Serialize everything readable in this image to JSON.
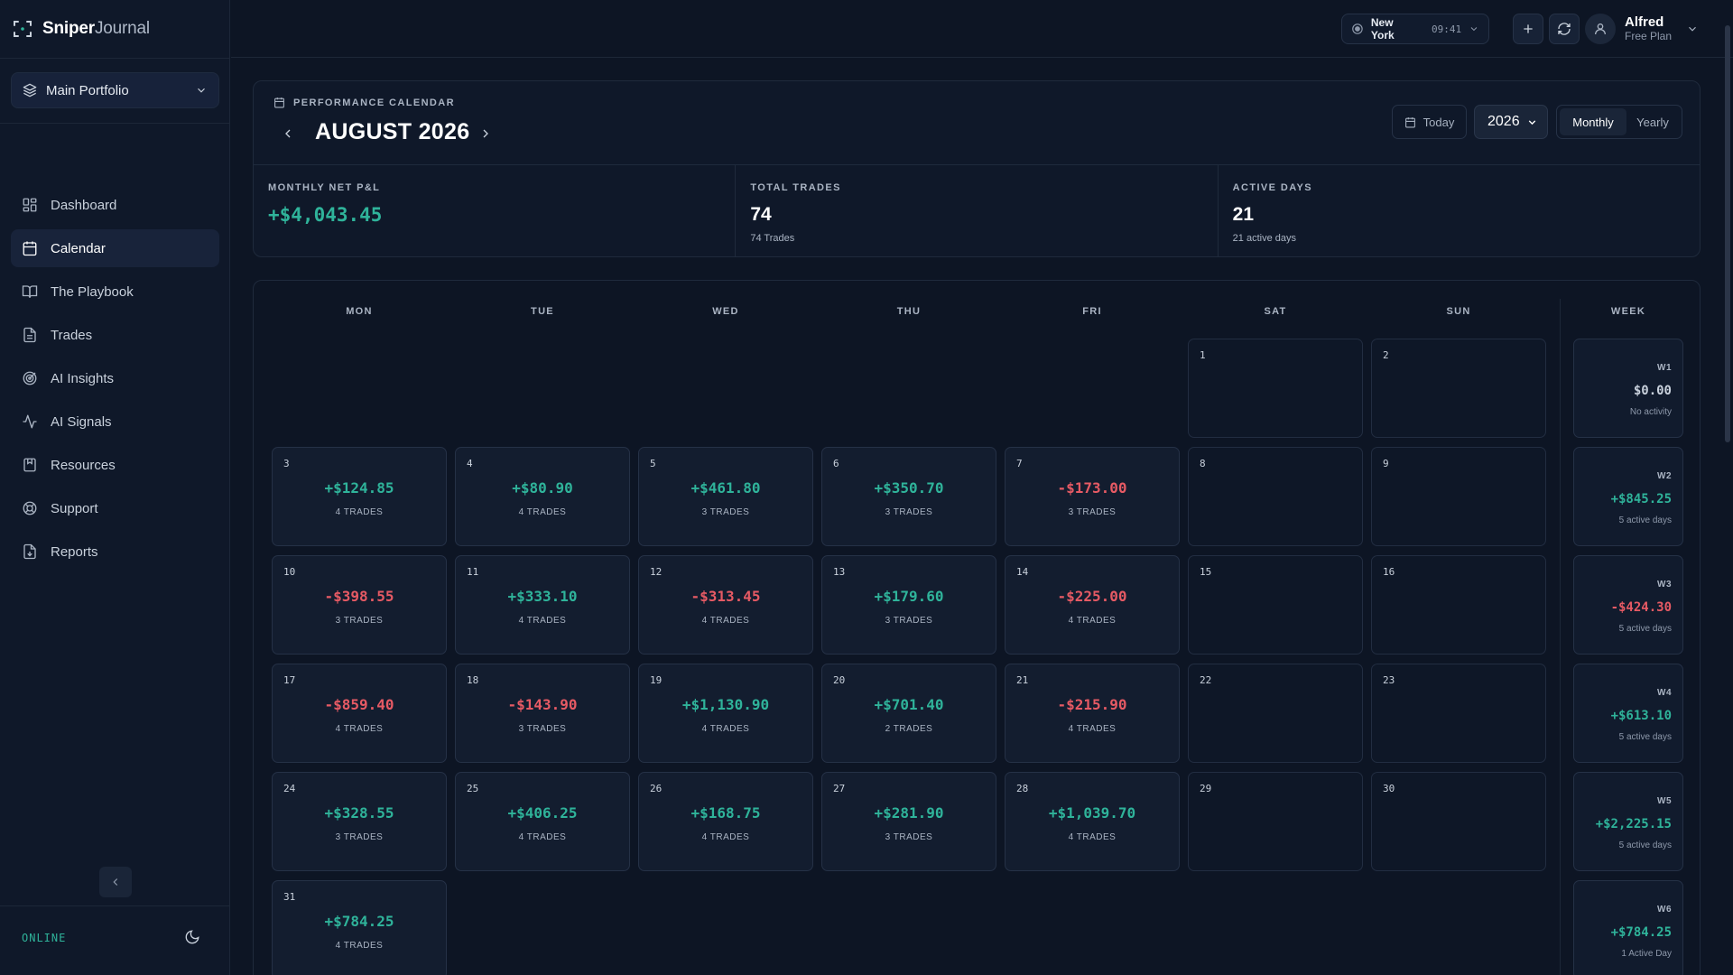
{
  "app": {
    "brand_bold": "Sniper",
    "brand_light": "Journal"
  },
  "sidebar": {
    "portfolio": "Main Portfolio",
    "items": [
      {
        "label": "Dashboard",
        "icon": "dashboard-icon"
      },
      {
        "label": "Calendar",
        "icon": "calendar-icon",
        "active": true
      },
      {
        "label": "The Playbook",
        "icon": "book-icon"
      },
      {
        "label": "Trades",
        "icon": "file-icon"
      },
      {
        "label": "AI Insights",
        "icon": "target-icon"
      },
      {
        "label": "AI Signals",
        "icon": "activity-icon"
      },
      {
        "label": "Resources",
        "icon": "bookmark-icon"
      },
      {
        "label": "Support",
        "icon": "lifebuoy-icon"
      },
      {
        "label": "Reports",
        "icon": "file-download-icon"
      }
    ],
    "status": "ONLINE"
  },
  "topbar": {
    "location": "New York",
    "time": "09:41",
    "user_name": "Alfred",
    "user_plan": "Free Plan"
  },
  "summary": {
    "section_label": "PERFORMANCE CALENDAR",
    "month_title": "AUGUST 2026",
    "today_label": "Today",
    "year": "2026",
    "view_monthly": "Monthly",
    "view_yearly": "Yearly",
    "stats": [
      {
        "label": "MONTHLY NET P&L",
        "value": "+$4,043.45",
        "sub": ""
      },
      {
        "label": "TOTAL TRADES",
        "value": "74",
        "sub": "74 Trades"
      },
      {
        "label": "ACTIVE DAYS",
        "value": "21",
        "sub": "21 active days"
      }
    ]
  },
  "calendar": {
    "weekdays": [
      "MON",
      "TUE",
      "WED",
      "THU",
      "FRI",
      "SAT",
      "SUN"
    ],
    "week_header": "WEEK",
    "weeks": [
      {
        "label": "W1",
        "total": "$0.00",
        "sub": "No activity",
        "days": [
          null,
          null,
          null,
          null,
          null,
          {
            "day": "1"
          },
          {
            "day": "2"
          }
        ]
      },
      {
        "label": "W2",
        "total": "+$845.25",
        "sub": "5 active days",
        "days": [
          {
            "day": "3",
            "pnl": "+$124.85",
            "trades": "4 TRADES"
          },
          {
            "day": "4",
            "pnl": "+$80.90",
            "trades": "4 TRADES"
          },
          {
            "day": "5",
            "pnl": "+$461.80",
            "trades": "3 TRADES"
          },
          {
            "day": "6",
            "pnl": "+$350.70",
            "trades": "3 TRADES"
          },
          {
            "day": "7",
            "pnl": "-$173.00",
            "trades": "3 TRADES"
          },
          {
            "day": "8"
          },
          {
            "day": "9"
          }
        ]
      },
      {
        "label": "W3",
        "total": "-$424.30",
        "sub": "5 active days",
        "days": [
          {
            "day": "10",
            "pnl": "-$398.55",
            "trades": "3 TRADES"
          },
          {
            "day": "11",
            "pnl": "+$333.10",
            "trades": "4 TRADES"
          },
          {
            "day": "12",
            "pnl": "-$313.45",
            "trades": "4 TRADES"
          },
          {
            "day": "13",
            "pnl": "+$179.60",
            "trades": "3 TRADES"
          },
          {
            "day": "14",
            "pnl": "-$225.00",
            "trades": "4 TRADES"
          },
          {
            "day": "15"
          },
          {
            "day": "16"
          }
        ]
      },
      {
        "label": "W4",
        "total": "+$613.10",
        "sub": "5 active days",
        "days": [
          {
            "day": "17",
            "pnl": "-$859.40",
            "trades": "4 TRADES"
          },
          {
            "day": "18",
            "pnl": "-$143.90",
            "trades": "3 TRADES"
          },
          {
            "day": "19",
            "pnl": "+$1,130.90",
            "trades": "4 TRADES"
          },
          {
            "day": "20",
            "pnl": "+$701.40",
            "trades": "2 TRADES"
          },
          {
            "day": "21",
            "pnl": "-$215.90",
            "trades": "4 TRADES"
          },
          {
            "day": "22"
          },
          {
            "day": "23"
          }
        ]
      },
      {
        "label": "W5",
        "total": "+$2,225.15",
        "sub": "5 active days",
        "days": [
          {
            "day": "24",
            "pnl": "+$328.55",
            "trades": "3 TRADES"
          },
          {
            "day": "25",
            "pnl": "+$406.25",
            "trades": "4 TRADES"
          },
          {
            "day": "26",
            "pnl": "+$168.75",
            "trades": "4 TRADES"
          },
          {
            "day": "27",
            "pnl": "+$281.90",
            "trades": "3 TRADES"
          },
          {
            "day": "28",
            "pnl": "+$1,039.70",
            "trades": "4 TRADES"
          },
          {
            "day": "29"
          },
          {
            "day": "30"
          }
        ]
      },
      {
        "label": "W6",
        "total": "+$784.25",
        "sub": "1 Active Day",
        "days": [
          {
            "day": "31",
            "pnl": "+$784.25",
            "trades": "4 TRADES"
          },
          null,
          null,
          null,
          null,
          null,
          null
        ]
      }
    ]
  },
  "colors": {
    "positive": "#2fb39a",
    "negative": "#e65a64",
    "accent": "#2fb39a"
  }
}
